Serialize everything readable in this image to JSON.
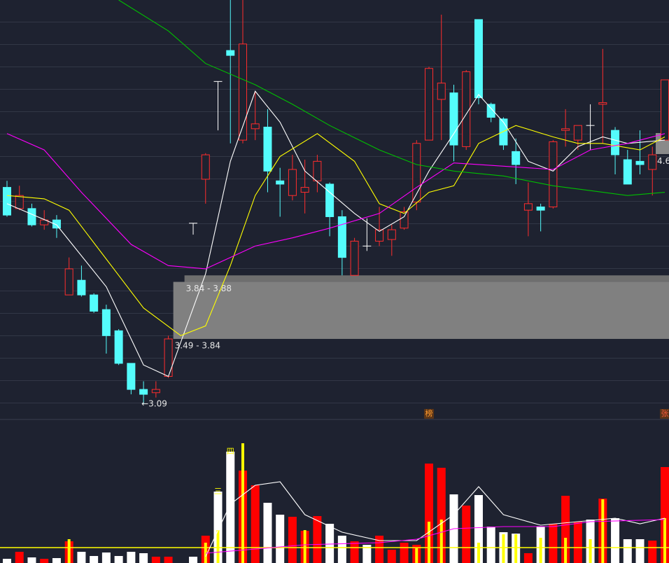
{
  "chart_data": [
    {
      "type": "candlestick",
      "x": [
        0,
        1,
        2,
        3,
        4,
        5,
        6,
        7,
        8,
        9,
        10,
        11,
        12,
        13,
        15,
        16,
        17,
        18,
        19,
        20,
        21,
        22,
        23,
        24,
        25,
        26,
        27,
        28,
        29,
        30,
        31,
        32,
        33,
        34,
        35,
        36,
        37,
        38,
        39,
        40,
        41,
        42,
        43,
        44,
        45,
        46,
        47,
        48,
        49,
        50,
        51,
        52,
        53
      ],
      "open": [
        4.42,
        4.29,
        4.29,
        4.19,
        4.22,
        3.76,
        3.85,
        3.76,
        3.67,
        3.54,
        3.34,
        3.18,
        3.16,
        3.26,
        4.2,
        4.47,
        5.07,
        5.26,
        4.71,
        4.78,
        4.79,
        4.46,
        4.37,
        4.39,
        4.46,
        4.44,
        4.24,
        3.88,
        4.06,
        4.09,
        4.1,
        4.17,
        4.33,
        4.71,
        4.96,
        5.0,
        4.67,
        5.45,
        4.93,
        4.84,
        4.64,
        4.28,
        4.3,
        4.3,
        4.77,
        4.71,
        4.8,
        4.93,
        4.77,
        4.59,
        4.58,
        4.53,
        4.71
      ],
      "high": [
        4.46,
        4.43,
        4.32,
        4.28,
        4.25,
        3.99,
        3.94,
        3.77,
        3.7,
        3.55,
        3.34,
        3.23,
        3.23,
        3.51,
        4.2,
        4.63,
        5.07,
        5.6,
        5.6,
        5.01,
        4.9,
        4.54,
        4.62,
        4.59,
        4.62,
        4.45,
        4.28,
        4.11,
        4.23,
        4.3,
        4.19,
        4.3,
        4.71,
        5.16,
        5.48,
        5.05,
        5.14,
        5.45,
        4.94,
        4.85,
        4.72,
        4.45,
        4.32,
        4.71,
        4.9,
        4.8,
        4.93,
        5.27,
        4.79,
        4.65,
        4.77,
        4.67,
        5.08
      ],
      "low": [
        4.24,
        4.28,
        4.18,
        4.16,
        4.11,
        3.76,
        3.75,
        3.65,
        3.4,
        3.33,
        3.15,
        3.09,
        3.13,
        3.25,
        4.13,
        4.32,
        4.77,
        4.69,
        4.69,
        4.71,
        4.39,
        4.24,
        4.34,
        4.26,
        4.39,
        4.12,
        3.88,
        3.88,
        4.03,
        4.06,
        4.0,
        4.16,
        4.28,
        4.71,
        4.71,
        4.58,
        4.65,
        4.93,
        4.82,
        4.65,
        4.44,
        4.12,
        4.15,
        4.29,
        4.67,
        4.65,
        4.65,
        4.69,
        4.5,
        4.44,
        4.5,
        4.37,
        4.71
      ],
      "close": [
        4.25,
        4.37,
        4.19,
        4.22,
        4.17,
        3.92,
        3.76,
        3.66,
        3.51,
        3.34,
        3.18,
        3.15,
        3.18,
        3.49,
        4.2,
        4.62,
        5.07,
        5.23,
        5.3,
        4.81,
        4.52,
        4.44,
        4.53,
        4.42,
        4.58,
        4.24,
        3.99,
        4.09,
        4.06,
        4.16,
        4.16,
        4.27,
        4.69,
        5.15,
        5.06,
        4.68,
        5.13,
        4.97,
        4.85,
        4.68,
        4.56,
        4.32,
        4.28,
        4.7,
        4.78,
        4.8,
        4.8,
        4.94,
        4.62,
        4.44,
        4.56,
        4.62,
        5.08
      ],
      "up_color": "#ff2d2d",
      "down_color": "#54fcfc",
      "flat_color": "#ffffff",
      "xlim": [
        0,
        53
      ],
      "ylim": [
        3.0,
        5.57
      ],
      "lines": [
        {
          "color": "#ffffff",
          "x": [
            0,
            4,
            8,
            11,
            13,
            16,
            18,
            20,
            22,
            24,
            26,
            28,
            30,
            32,
            34,
            36,
            38,
            40,
            42,
            44,
            46,
            48,
            50,
            53
          ],
          "values": [
            4.32,
            4.19,
            3.81,
            3.33,
            3.26,
            3.89,
            4.58,
            5.01,
            4.82,
            4.52,
            4.39,
            4.26,
            4.15,
            4.24,
            4.52,
            4.75,
            4.99,
            4.82,
            4.58,
            4.52,
            4.67,
            4.73,
            4.69,
            4.71
          ]
        },
        {
          "color": "#ffff00",
          "x": [
            0,
            3,
            5,
            8,
            11,
            14,
            16,
            18,
            20,
            22,
            25,
            28,
            30,
            32,
            34,
            36,
            38,
            41,
            44,
            46,
            48,
            51,
            53
          ],
          "values": [
            4.37,
            4.35,
            4.28,
            3.98,
            3.68,
            3.51,
            3.57,
            3.94,
            4.37,
            4.61,
            4.75,
            4.58,
            4.32,
            4.26,
            4.39,
            4.43,
            4.69,
            4.8,
            4.73,
            4.69,
            4.69,
            4.65,
            4.73
          ]
        },
        {
          "color": "#ff00ff",
          "x": [
            0,
            3,
            6,
            10,
            13,
            16,
            20,
            23,
            26,
            30,
            33,
            36,
            40,
            44,
            47,
            50,
            53
          ],
          "values": [
            4.75,
            4.65,
            4.39,
            4.07,
            3.94,
            3.92,
            4.06,
            4.11,
            4.17,
            4.26,
            4.42,
            4.57,
            4.55,
            4.53,
            4.65,
            4.69,
            4.75
          ]
        },
        {
          "color": "#00c000",
          "x": [
            9,
            13,
            16,
            20,
            23,
            26,
            30,
            33,
            36,
            40,
            44,
            47,
            50,
            53
          ],
          "values": [
            5.57,
            5.38,
            5.18,
            5.05,
            4.93,
            4.8,
            4.65,
            4.56,
            4.52,
            4.49,
            4.43,
            4.4,
            4.37,
            4.39
          ]
        }
      ],
      "zones": [
        {
          "start": 14.3,
          "low": 3.84,
          "high": 3.88,
          "label": "3.84 - 3.88",
          "color": "#6e6e6e"
        },
        {
          "start": 13.4,
          "low": 3.49,
          "high": 3.84,
          "label": "3.49 - 3.84",
          "color": "#808080"
        }
      ],
      "low_marker": {
        "label": "←3.09",
        "value": 3.09
      },
      "price_tag": {
        "label": "4.6",
        "value": 4.6
      },
      "events": [
        {
          "label": "榜",
          "x": 34,
          "color": "#ff9a2e"
        },
        {
          "label": "张",
          "x": 53,
          "color": "#ff5a3a"
        }
      ]
    },
    {
      "type": "bar",
      "x": [
        0,
        1,
        2,
        3,
        4,
        5,
        6,
        7,
        8,
        9,
        10,
        11,
        12,
        13,
        14,
        15,
        16,
        17,
        18,
        19,
        20,
        21,
        22,
        23,
        24,
        25,
        26,
        27,
        28,
        29,
        30,
        31,
        32,
        33,
        34,
        35,
        36,
        37,
        38,
        39,
        40,
        41,
        42,
        43,
        44,
        45,
        46,
        47,
        48,
        49,
        50,
        51,
        52,
        53
      ],
      "values": [
        0.6,
        1.6,
        0.8,
        0.6,
        0.7,
        3.1,
        1.6,
        1.0,
        1.5,
        1.0,
        1.6,
        1.4,
        0.9,
        0.9,
        null,
        0.9,
        3.9,
        10.2,
        15.9,
        13.2,
        11.1,
        8.6,
        6.9,
        6.6,
        4.6,
        6.7,
        5.6,
        3.9,
        3.1,
        2.6,
        3.9,
        1.9,
        2.9,
        2.6,
        14.2,
        13.6,
        9.8,
        8.2,
        9.7,
        5.2,
        4.4,
        4.2,
        1.4,
        5.2,
        5.6,
        9.6,
        5.9,
        6.2,
        9.2,
        6.4,
        3.4,
        3.4,
        3.2,
        13.7
      ],
      "up_color": "#ff0000",
      "down_color": "#ffffff",
      "xlim": [
        0,
        53
      ],
      "ylim": [
        0,
        20
      ],
      "secondary": {
        "color": "#ffff00",
        "values": [
          null,
          null,
          null,
          null,
          null,
          3.4,
          null,
          null,
          null,
          null,
          null,
          null,
          null,
          null,
          null,
          null,
          2.9,
          4.7,
          null,
          17.1,
          null,
          null,
          null,
          null,
          4.7,
          null,
          null,
          null,
          null,
          null,
          null,
          null,
          null,
          2.1,
          5.9,
          6.2,
          null,
          null,
          2.9,
          null,
          4.1,
          4.1,
          null,
          3.6,
          null,
          3.6,
          null,
          3.4,
          9.1,
          null,
          null,
          null,
          null,
          6.4
        ]
      },
      "reference_line": {
        "value": 2.2,
        "color": "#ffff00"
      },
      "lines": [
        {
          "color": "#ffffff",
          "x": [
            16,
            18,
            20,
            22,
            24,
            27,
            30,
            33,
            36,
            38,
            40,
            43,
            46,
            49,
            51,
            53
          ],
          "values": [
            0.9,
            8.4,
            11.1,
            11.6,
            6.9,
            4.4,
            3.2,
            3.2,
            6.9,
            10.9,
            6.9,
            5.4,
            5.9,
            6.4,
            5.6,
            6.4
          ]
        },
        {
          "color": "#ff00ff",
          "x": [
            16,
            24,
            30,
            33,
            36,
            40,
            44,
            47,
            53
          ],
          "values": [
            1.4,
            2.6,
            2.9,
            3.4,
            4.9,
            5.2,
            5.2,
            5.9,
            6.2
          ]
        }
      ],
      "annotations": [
        {
          "label": "四",
          "x": 18,
          "value": 15.9
        },
        {
          "label": "三",
          "x": 17,
          "value": 10.2
        }
      ]
    }
  ]
}
